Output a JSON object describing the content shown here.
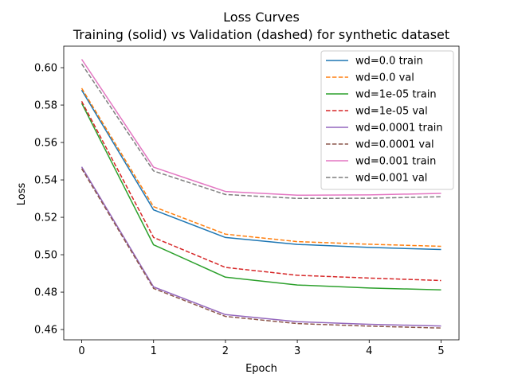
{
  "chart_data": {
    "type": "line",
    "title": "Loss Curves",
    "subtitle": "Training (solid) vs Validation (dashed) for synthetic dataset",
    "xlabel": "Epoch",
    "ylabel": "Loss",
    "x": [
      0,
      1,
      2,
      3,
      4,
      5
    ],
    "xticks": [
      "0",
      "1",
      "2",
      "3",
      "4",
      "5"
    ],
    "yticks": [
      "0.46",
      "0.48",
      "0.50",
      "0.52",
      "0.54",
      "0.56",
      "0.58",
      "0.60"
    ],
    "xlim": [
      -0.25,
      5.25
    ],
    "ylim": [
      0.4545,
      0.6115
    ],
    "grid": false,
    "legend_position": "top-right",
    "series": [
      {
        "name": "wd=0.0 train",
        "color": "#1f77b4",
        "style": "solid",
        "values": [
          0.588,
          0.524,
          0.5092,
          0.5055,
          0.5039,
          0.5028
        ]
      },
      {
        "name": "wd=0.0 val",
        "color": "#ff7f0e",
        "style": "dashed",
        "values": [
          0.589,
          0.5257,
          0.511,
          0.507,
          0.5056,
          0.5045
        ]
      },
      {
        "name": "wd=1e-05 train",
        "color": "#2ca02c",
        "style": "solid",
        "values": [
          0.581,
          0.5053,
          0.488,
          0.4838,
          0.4822,
          0.4812
        ]
      },
      {
        "name": "wd=1e-05 val",
        "color": "#d62728",
        "style": "dashed",
        "values": [
          0.582,
          0.5092,
          0.4932,
          0.489,
          0.4875,
          0.4862
        ]
      },
      {
        "name": "wd=0.0001 train",
        "color": "#9467bd",
        "style": "solid",
        "values": [
          0.547,
          0.4828,
          0.468,
          0.4642,
          0.4628,
          0.4619
        ]
      },
      {
        "name": "wd=0.0001 val",
        "color": "#8c564b",
        "style": "dashed",
        "values": [
          0.546,
          0.482,
          0.467,
          0.4632,
          0.4618,
          0.4608
        ]
      },
      {
        "name": "wd=0.001 train",
        "color": "#e377c2",
        "style": "solid",
        "values": [
          0.6045,
          0.5468,
          0.5338,
          0.5318,
          0.532,
          0.5328
        ]
      },
      {
        "name": "wd=0.001 val",
        "color": "#7f7f7f",
        "style": "dashed",
        "values": [
          0.602,
          0.5448,
          0.5322,
          0.5301,
          0.5302,
          0.531
        ]
      }
    ]
  }
}
